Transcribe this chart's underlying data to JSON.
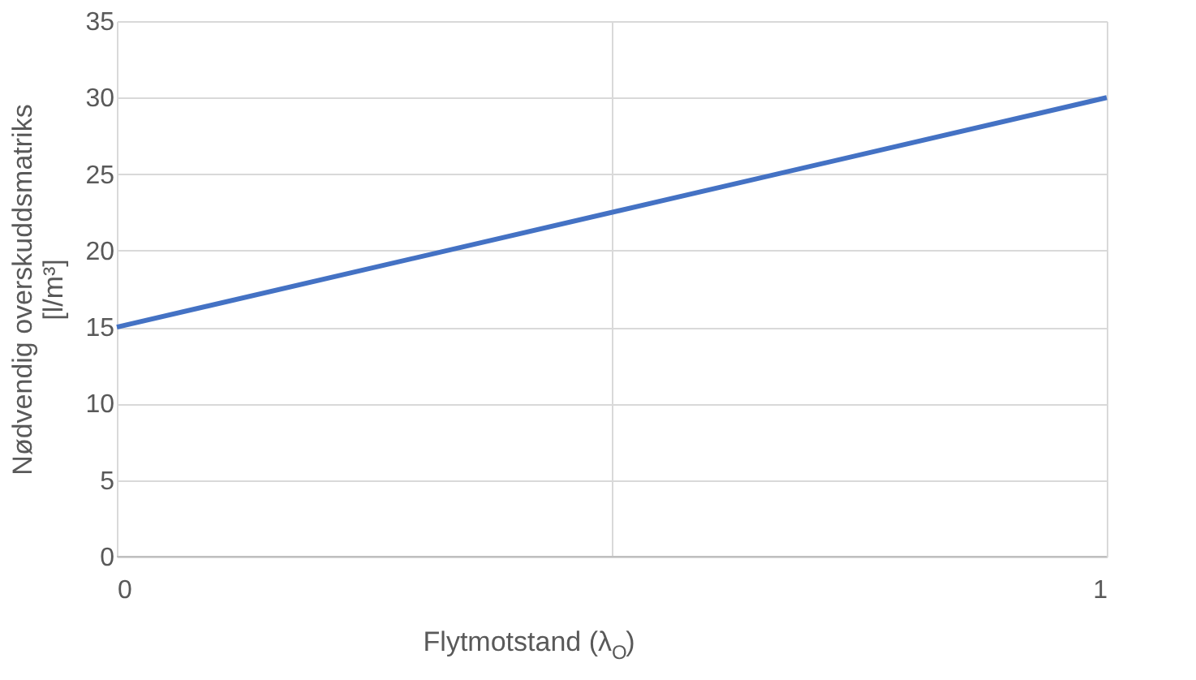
{
  "chart_data": {
    "type": "line",
    "xlabel": "Flytmotstand (λ$_{O}$)",
    "ylabel": "Nødvendig overskuddsmatriks [l/m³]",
    "x": [
      0,
      1
    ],
    "series": [
      {
        "color": "#4472c4",
        "values": [
          15,
          30
        ]
      }
    ],
    "xlim": [
      0,
      1
    ],
    "xticks": [
      0,
      {
        "value": 0.5,
        "label": null
      },
      1
    ],
    "ylim": [
      0,
      35
    ],
    "yticks": [
      0,
      5,
      10,
      15,
      20,
      25,
      30,
      35
    ],
    "grid": true,
    "legend": false,
    "marker": "none",
    "line_style": "solid"
  }
}
